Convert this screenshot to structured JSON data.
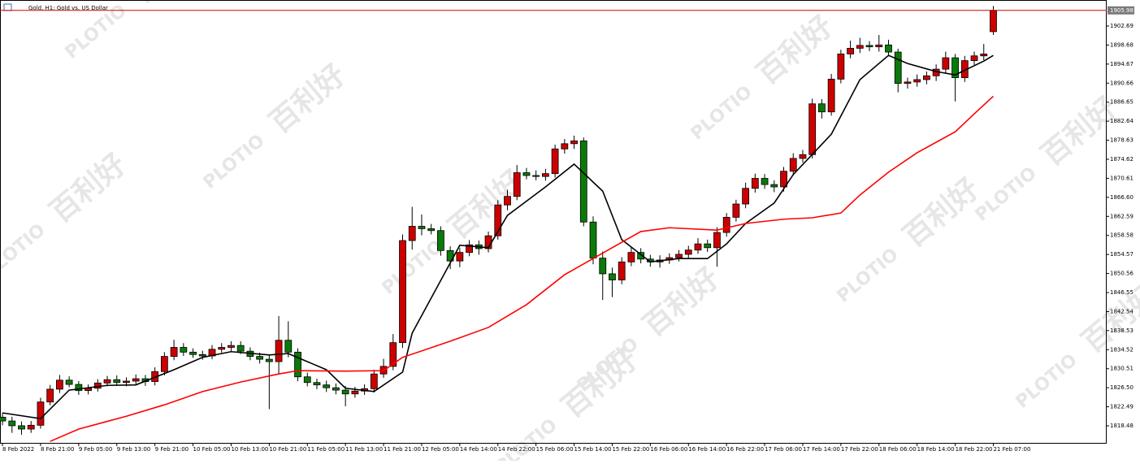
{
  "chart_data": {
    "type": "candlestick",
    "title": "Gold, H1: Gold vs. US Dollar",
    "watermark": "百利好",
    "watermark_brand": "PLOTIO",
    "up_color": "#cc0000",
    "down_color": "#0a7a0a",
    "xlim": [
      -0.26,
      115.9
    ],
    "xticks": [
      {
        "value": 0,
        "label": "8 Feb 2022"
      },
      {
        "value": 4,
        "label": "8 Feb 21:00"
      },
      {
        "value": 8,
        "label": "9 Feb 05:00"
      },
      {
        "value": 12,
        "label": "9 Feb 13:00"
      },
      {
        "value": 16,
        "label": "9 Feb 21:00"
      },
      {
        "value": 20,
        "label": "10 Feb 05:00"
      },
      {
        "value": 24,
        "label": "10 Feb 13:00"
      },
      {
        "value": 28,
        "label": "10 Feb 21:00"
      },
      {
        "value": 32,
        "label": "11 Feb 05:00"
      },
      {
        "value": 36,
        "label": "11 Feb 13:00"
      },
      {
        "value": 40,
        "label": "11 Feb 21:00"
      },
      {
        "value": 44,
        "label": "12 Feb 05:00"
      },
      {
        "value": 48,
        "label": "14 Feb 14:00"
      },
      {
        "value": 52,
        "label": "14 Feb 22:00"
      },
      {
        "value": 56,
        "label": "15 Feb 06:00"
      },
      {
        "value": 60,
        "label": "15 Feb 14:00"
      },
      {
        "value": 64,
        "label": "15 Feb 22:00"
      },
      {
        "value": 68,
        "label": "16 Feb 06:00"
      },
      {
        "value": 72,
        "label": "16 Feb 14:00"
      },
      {
        "value": 76,
        "label": "16 Feb 22:00"
      },
      {
        "value": 80,
        "label": "17 Feb 06:00"
      },
      {
        "value": 84,
        "label": "17 Feb 14:00"
      },
      {
        "value": 88,
        "label": "17 Feb 22:00"
      },
      {
        "value": 92,
        "label": "18 Feb 06:00"
      },
      {
        "value": 96,
        "label": "18 Feb 14:00"
      },
      {
        "value": 100,
        "label": "18 Feb 22:00"
      },
      {
        "value": 104,
        "label": "21 Feb 07:00"
      }
    ],
    "ylim": [
      1814.89,
      1907.31
    ],
    "yticks": [
      1818.48,
      1822.49,
      {
        "value": 1826.5,
        "label": "1826.50"
      },
      1830.51,
      1834.52,
      1838.53,
      1842.54,
      1846.55,
      1850.56,
      1854.57,
      1858.58,
      1862.59,
      {
        "value": 1866.6,
        "label": "1866.60"
      },
      1870.61,
      1874.62,
      1878.63,
      1882.64,
      1886.65,
      1890.66,
      1894.67,
      1898.68,
      1902.69
    ],
    "open": [
      1820.3,
      1819.5,
      1818.5,
      1817.8,
      1818.6,
      1823.5,
      1826.2,
      1828.1,
      1827.2,
      1825.9,
      1826.4,
      1827.5,
      1828.2,
      1827.6,
      1827.9,
      1828.4,
      1827.8,
      1829.9,
      1833.1,
      1835.0,
      1834.0,
      1833.5,
      1833.2,
      1834.6,
      1835.0,
      1835.4,
      1834.2,
      1833.1,
      1832.5,
      1832.0,
      1836.5,
      1834.0,
      1828.8,
      1827.6,
      1827.1,
      1826.5,
      1826.0,
      1825.2,
      1825.8,
      1826.3,
      1829.4,
      1831.0,
      1836.0,
      1857.5,
      1860.5,
      1860.0,
      1859.6,
      1855.4,
      1853.2,
      1855.0,
      1856.6,
      1855.8,
      1858.5,
      1865.0,
      1866.8,
      1871.8,
      1871.2,
      1871.0,
      1871.6,
      1876.8,
      1877.9,
      1878.5,
      1861.4,
      1853.8,
      1850.5,
      1849.2,
      1853.0,
      1855.0,
      1853.6,
      1853.0,
      1853.4,
      1853.9,
      1854.6,
      1855.5,
      1856.8,
      1856.0,
      1859.2,
      1862.4,
      1865.2,
      1868.5,
      1870.6,
      1869.3,
      1868.8,
      1872.1,
      1874.8,
      1875.6,
      1886.3,
      1884.6,
      1891.5,
      1896.8,
      1898.0,
      1898.6,
      1898.3,
      1898.7,
      1897.2,
      1890.6,
      1890.9,
      1891.4,
      1892.2,
      1893.6,
      1896.0,
      1891.8,
      1895.4,
      1896.4,
      1901.5
    ],
    "high": [
      1821.2,
      1820.4,
      1819.4,
      1819.5,
      1824.4,
      1827.1,
      1829.2,
      1828.9,
      1827.9,
      1827.2,
      1828.3,
      1829.0,
      1829.1,
      1828.7,
      1829.3,
      1829.2,
      1830.8,
      1834.0,
      1836.6,
      1835.9,
      1834.8,
      1834.3,
      1835.5,
      1835.9,
      1836.3,
      1836.3,
      1835.0,
      1833.9,
      1833.3,
      1841.6,
      1840.5,
      1834.8,
      1829.7,
      1828.4,
      1828.0,
      1827.4,
      1826.9,
      1826.7,
      1827.2,
      1830.3,
      1832.6,
      1837.8,
      1858.8,
      1864.6,
      1863.0,
      1861.0,
      1860.5,
      1856.3,
      1856.0,
      1857.6,
      1857.5,
      1859.4,
      1866.0,
      1868.2,
      1873.4,
      1872.8,
      1872.3,
      1872.6,
      1877.7,
      1878.9,
      1879.6,
      1879.2,
      1862.6,
      1855.2,
      1851.8,
      1854.0,
      1856.2,
      1855.9,
      1854.5,
      1854.4,
      1854.8,
      1855.5,
      1856.4,
      1858.0,
      1857.7,
      1860.3,
      1863.3,
      1866.1,
      1869.7,
      1871.6,
      1871.5,
      1870.2,
      1873.0,
      1875.9,
      1876.6,
      1887.4,
      1887.3,
      1892.6,
      1897.7,
      1899.6,
      1900.2,
      1899.5,
      1900.8,
      1899.8,
      1897.9,
      1891.8,
      1892.5,
      1893.1,
      1894.6,
      1897.3,
      1896.8,
      1896.4,
      1897.3,
      1898.9,
      1906.9
    ],
    "low": [
      1818.6,
      1817.0,
      1816.6,
      1817.0,
      1817.9,
      1822.8,
      1825.4,
      1826.6,
      1825.0,
      1825.1,
      1825.7,
      1826.8,
      1826.9,
      1826.8,
      1827.1,
      1826.9,
      1827.0,
      1829.1,
      1832.3,
      1833.2,
      1832.8,
      1832.4,
      1832.5,
      1833.9,
      1834.2,
      1833.6,
      1832.3,
      1831.6,
      1822.0,
      1829.5,
      1832.9,
      1827.9,
      1826.8,
      1826.2,
      1825.6,
      1825.1,
      1822.6,
      1824.4,
      1825.0,
      1825.5,
      1828.6,
      1830.2,
      1834.9,
      1855.6,
      1858.6,
      1858.8,
      1854.3,
      1851.5,
      1851.9,
      1854.2,
      1854.5,
      1855.0,
      1857.7,
      1863.9,
      1866.0,
      1870.4,
      1870.2,
      1870.1,
      1870.8,
      1875.8,
      1876.8,
      1860.5,
      1852.5,
      1845.0,
      1845.6,
      1848.3,
      1852.1,
      1852.7,
      1852.0,
      1851.8,
      1852.6,
      1853.1,
      1853.8,
      1854.7,
      1855.1,
      1852.0,
      1858.3,
      1861.5,
      1864.3,
      1867.6,
      1868.4,
      1867.7,
      1867.8,
      1871.2,
      1873.9,
      1874.8,
      1883.2,
      1883.8,
      1890.6,
      1895.9,
      1897.0,
      1897.4,
      1897.3,
      1896.3,
      1888.7,
      1889.5,
      1889.9,
      1890.4,
      1891.1,
      1892.6,
      1886.8,
      1890.9,
      1894.5,
      1895.5,
      1900.8
    ],
    "close": [
      1819.5,
      1818.5,
      1817.8,
      1818.6,
      1823.5,
      1826.2,
      1828.1,
      1827.2,
      1825.9,
      1826.4,
      1827.5,
      1828.2,
      1827.6,
      1827.9,
      1828.4,
      1827.8,
      1829.9,
      1833.1,
      1835.0,
      1834.0,
      1833.5,
      1833.2,
      1834.6,
      1835.0,
      1835.4,
      1834.2,
      1833.1,
      1832.5,
      1832.0,
      1836.5,
      1834.0,
      1828.8,
      1827.6,
      1827.1,
      1826.5,
      1826.0,
      1825.2,
      1825.8,
      1826.3,
      1829.4,
      1831.0,
      1836.0,
      1857.5,
      1860.5,
      1860.0,
      1859.6,
      1855.4,
      1853.2,
      1855.0,
      1856.6,
      1855.8,
      1858.5,
      1865.0,
      1866.8,
      1871.8,
      1871.2,
      1871.0,
      1871.6,
      1876.8,
      1877.9,
      1878.5,
      1861.4,
      1853.8,
      1850.5,
      1849.2,
      1853.0,
      1855.0,
      1853.6,
      1853.0,
      1853.4,
      1853.9,
      1854.6,
      1855.5,
      1856.8,
      1856.0,
      1859.2,
      1862.4,
      1865.2,
      1868.5,
      1870.6,
      1869.3,
      1868.8,
      1872.1,
      1874.8,
      1875.6,
      1886.3,
      1884.6,
      1891.5,
      1896.8,
      1898.0,
      1898.6,
      1898.3,
      1898.7,
      1897.2,
      1890.6,
      1890.9,
      1891.4,
      1892.2,
      1893.6,
      1896.0,
      1891.8,
      1895.4,
      1896.4,
      1896.8,
      1905.98
    ],
    "series": [
      {
        "color": "#000000",
        "x": [
          0,
          4,
          7,
          11,
          14,
          18,
          21,
          24,
          28,
          30,
          34,
          36,
          39,
          42,
          43,
          46,
          48,
          51,
          53,
          57,
          60,
          63,
          65,
          68,
          71,
          74,
          76,
          78,
          81,
          83,
          87,
          90,
          93,
          95,
          98,
          100,
          103,
          104
        ],
        "values": [
          1821.2,
          1820.0,
          1826.0,
          1827.0,
          1827.1,
          1830.3,
          1832.9,
          1834.1,
          1833.4,
          1833.7,
          1830.3,
          1826.4,
          1825.7,
          1829.8,
          1838.0,
          1849.1,
          1856.5,
          1856.0,
          1862.8,
          1868.8,
          1873.6,
          1867.9,
          1857.7,
          1853.0,
          1853.7,
          1853.7,
          1856.8,
          1861.1,
          1865.4,
          1871.4,
          1879.9,
          1891.4,
          1896.5,
          1894.8,
          1893.1,
          1892.4,
          1895.3,
          1896.5
        ]
      },
      {
        "color": "#ff0000",
        "x": [
          5,
          8,
          13,
          17,
          21,
          25,
          29,
          31,
          36,
          40,
          42,
          47,
          51,
          55,
          59,
          64,
          67,
          70,
          75,
          78,
          82,
          85,
          88,
          90,
          93,
          96,
          100,
          102,
          104
        ],
        "values": [
          1815.2,
          1817.8,
          1820.5,
          1822.9,
          1825.7,
          1827.7,
          1829.4,
          1830.1,
          1830.0,
          1830.1,
          1832.9,
          1836.3,
          1839.2,
          1844.0,
          1850.3,
          1856.0,
          1859.4,
          1860.2,
          1859.7,
          1861.1,
          1862.0,
          1862.3,
          1863.3,
          1867.1,
          1871.9,
          1876.0,
          1880.4,
          1884.2,
          1887.9
        ]
      }
    ]
  }
}
